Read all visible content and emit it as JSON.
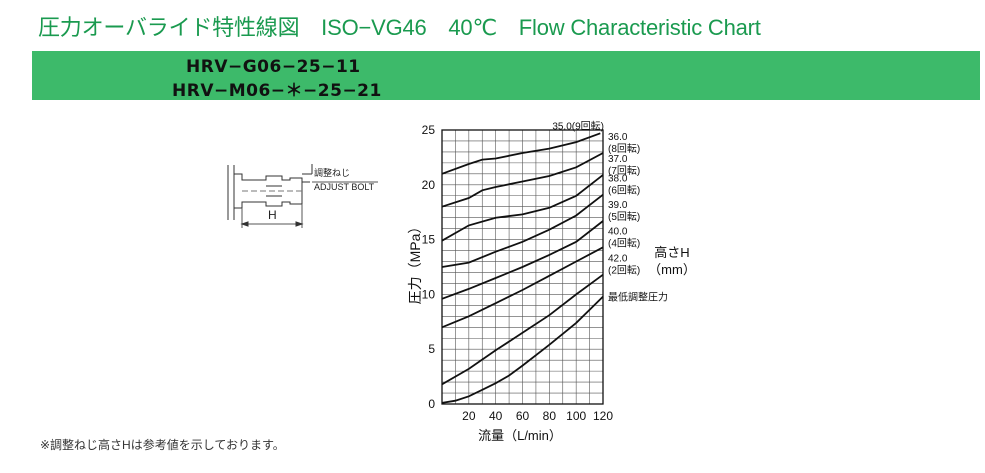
{
  "page": {
    "title": "圧力オーバライド特性線図　ISO−VG46　40℃　Flow Characteristic Chart",
    "models": [
      "HRV−G06−25−11",
      "HRV−M06−＊−25−21"
    ],
    "footnote": "※調整ねじ高さHは参考値を示しております。"
  },
  "diagram": {
    "label_jp": "調整ねじ",
    "label_en": "ADJUST BOLT",
    "dimension_label": "H"
  },
  "chart_data": {
    "type": "line",
    "xlabel": "流量（L/min）",
    "ylabel": "圧力（MPa）",
    "xlim": [
      0,
      120
    ],
    "ylim": [
      0,
      25
    ],
    "x_ticks": [
      "20",
      "40",
      "60",
      "80",
      "100",
      "120"
    ],
    "y_ticks": [
      "0",
      "5",
      "10",
      "15",
      "20",
      "25"
    ],
    "grid": true,
    "legend_title": [
      "高さH",
      "（mm）"
    ],
    "series": [
      {
        "name": "35.0(9回転)",
        "labels": [
          "35.0(9回転)"
        ],
        "x": [
          0,
          20,
          30,
          40,
          60,
          80,
          100,
          118
        ],
        "y": [
          21.0,
          21.9,
          22.3,
          22.4,
          22.9,
          23.3,
          23.9,
          24.7
        ]
      },
      {
        "name": "36.0(8回転)",
        "labels": [
          "36.0",
          "(8回転)"
        ],
        "x": [
          0,
          20,
          30,
          40,
          60,
          80,
          100,
          120
        ],
        "y": [
          18.0,
          18.8,
          19.5,
          19.8,
          20.3,
          20.8,
          21.6,
          22.9
        ]
      },
      {
        "name": "37.0(7回転)",
        "labels": [
          "37.0",
          "(7回転)"
        ],
        "x": [
          0,
          20,
          40,
          60,
          80,
          100,
          120
        ],
        "y": [
          14.9,
          16.3,
          17.0,
          17.3,
          17.9,
          19.0,
          20.9
        ]
      },
      {
        "name": "38.0(6回転)",
        "labels": [
          "38.0",
          "(6回転)"
        ],
        "x": [
          0,
          20,
          40,
          60,
          80,
          100,
          120
        ],
        "y": [
          12.5,
          12.9,
          13.9,
          14.8,
          15.9,
          17.2,
          19.1
        ]
      },
      {
        "name": "39.0(5回転)",
        "labels": [
          "39.0",
          "(5回転)"
        ],
        "x": [
          0,
          20,
          40,
          60,
          80,
          100,
          120
        ],
        "y": [
          9.6,
          10.5,
          11.5,
          12.5,
          13.6,
          14.8,
          16.7
        ]
      },
      {
        "name": "40.0(4回転)",
        "labels": [
          "40.0",
          "(4回転)"
        ],
        "x": [
          0,
          20,
          40,
          60,
          80,
          100,
          120
        ],
        "y": [
          7.0,
          8.0,
          9.2,
          10.4,
          11.7,
          13.0,
          14.3
        ]
      },
      {
        "name": "42.0(2回転)",
        "labels": [
          "42.0",
          "(2回転)"
        ],
        "x": [
          0,
          20,
          40,
          60,
          80,
          100,
          120
        ],
        "y": [
          1.8,
          3.2,
          4.9,
          6.5,
          8.1,
          10.0,
          11.8
        ]
      },
      {
        "name": "最低調整圧力",
        "labels": [
          "最低調整圧力"
        ],
        "x": [
          0,
          10,
          20,
          30,
          40,
          50,
          60,
          80,
          100,
          120
        ],
        "y": [
          0.1,
          0.3,
          0.7,
          1.3,
          1.9,
          2.6,
          3.5,
          5.4,
          7.4,
          9.8
        ]
      }
    ]
  }
}
